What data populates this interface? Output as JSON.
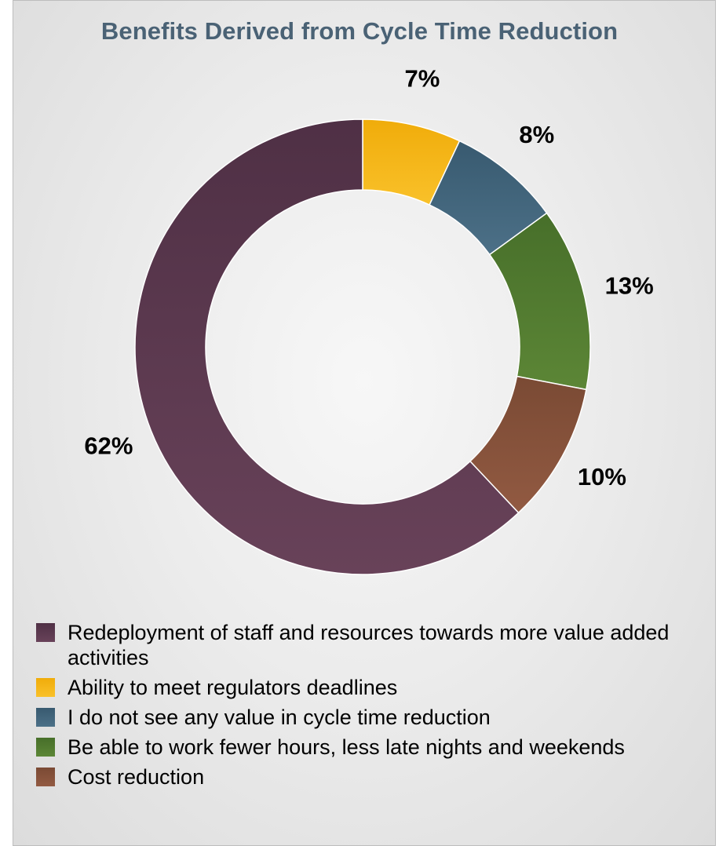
{
  "chart_data": {
    "type": "pie",
    "variant": "donut",
    "title": "Benefits Derived from Cycle Time Reduction",
    "unit": "%",
    "legend_placement": "bottom",
    "slices": [
      {
        "label": "Ability to meet regulators deadlines",
        "value": 7,
        "display": "7%",
        "color": "#f0ac0a",
        "color_light": "#f9c12a"
      },
      {
        "label": "I do not see any value in cycle time reduction",
        "value": 8,
        "display": "8%",
        "color": "#385a70",
        "color_light": "#4c7087"
      },
      {
        "label": "Be able to work fewer hours, less late nights and weekends",
        "value": 13,
        "display": "13%",
        "color": "#476f2a",
        "color_light": "#5c8636"
      },
      {
        "label": "Cost reduction",
        "value": 10,
        "display": "10%",
        "color": "#7a4a34",
        "color_light": "#925a42"
      },
      {
        "label": "Redeployment of staff and resources towards more value added activities",
        "value": 62,
        "display": "62%",
        "color": "#4f3045",
        "color_light": "#684259"
      }
    ],
    "legend_order": [
      4,
      0,
      1,
      2,
      3
    ]
  }
}
